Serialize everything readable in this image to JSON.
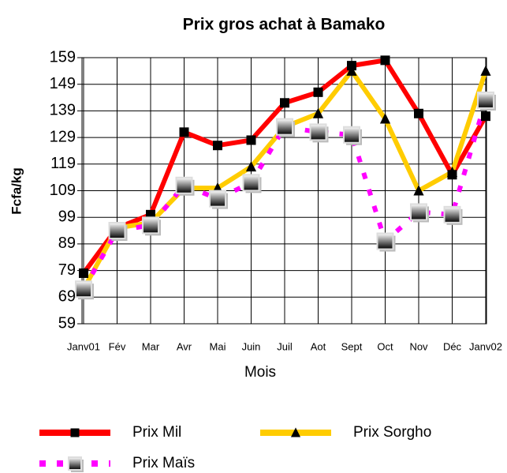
{
  "chart_data": {
    "type": "line",
    "title": "Prix  gros achat à Bamako",
    "x_label": "Mois",
    "y_label": "Fcfa/kg",
    "categories": [
      "Janv01",
      "Fév",
      "Mar",
      "Avr",
      "Mai",
      "Juin",
      "Juil",
      "Aot",
      "Sept",
      "Oct",
      "Nov",
      "Déc",
      "Janv02"
    ],
    "series": [
      {
        "name": "Prix Mil",
        "color": "#ff0000",
        "marker": "square",
        "values": [
          78,
          95,
          100,
          131,
          126,
          128,
          142,
          146,
          156,
          158,
          138,
          115,
          137
        ]
      },
      {
        "name": "Prix Sorgho",
        "color": "#ffcc00",
        "marker": "triangle",
        "values": [
          72,
          95,
          97,
          110,
          110,
          118,
          133,
          138,
          154,
          136,
          109,
          116,
          154
        ]
      },
      {
        "name": "Prix Maïs",
        "color": "#ff00ff",
        "marker": "gradient-square",
        "dashed": true,
        "values": [
          72,
          94,
          96,
          111,
          106,
          112,
          133,
          131,
          130,
          90,
          101,
          100,
          143
        ]
      }
    ],
    "ylim": [
      59,
      159
    ],
    "yticks": [
      59,
      69,
      79,
      89,
      99,
      109,
      119,
      129,
      139,
      149,
      159
    ],
    "grid": true,
    "legend": "bottom"
  }
}
